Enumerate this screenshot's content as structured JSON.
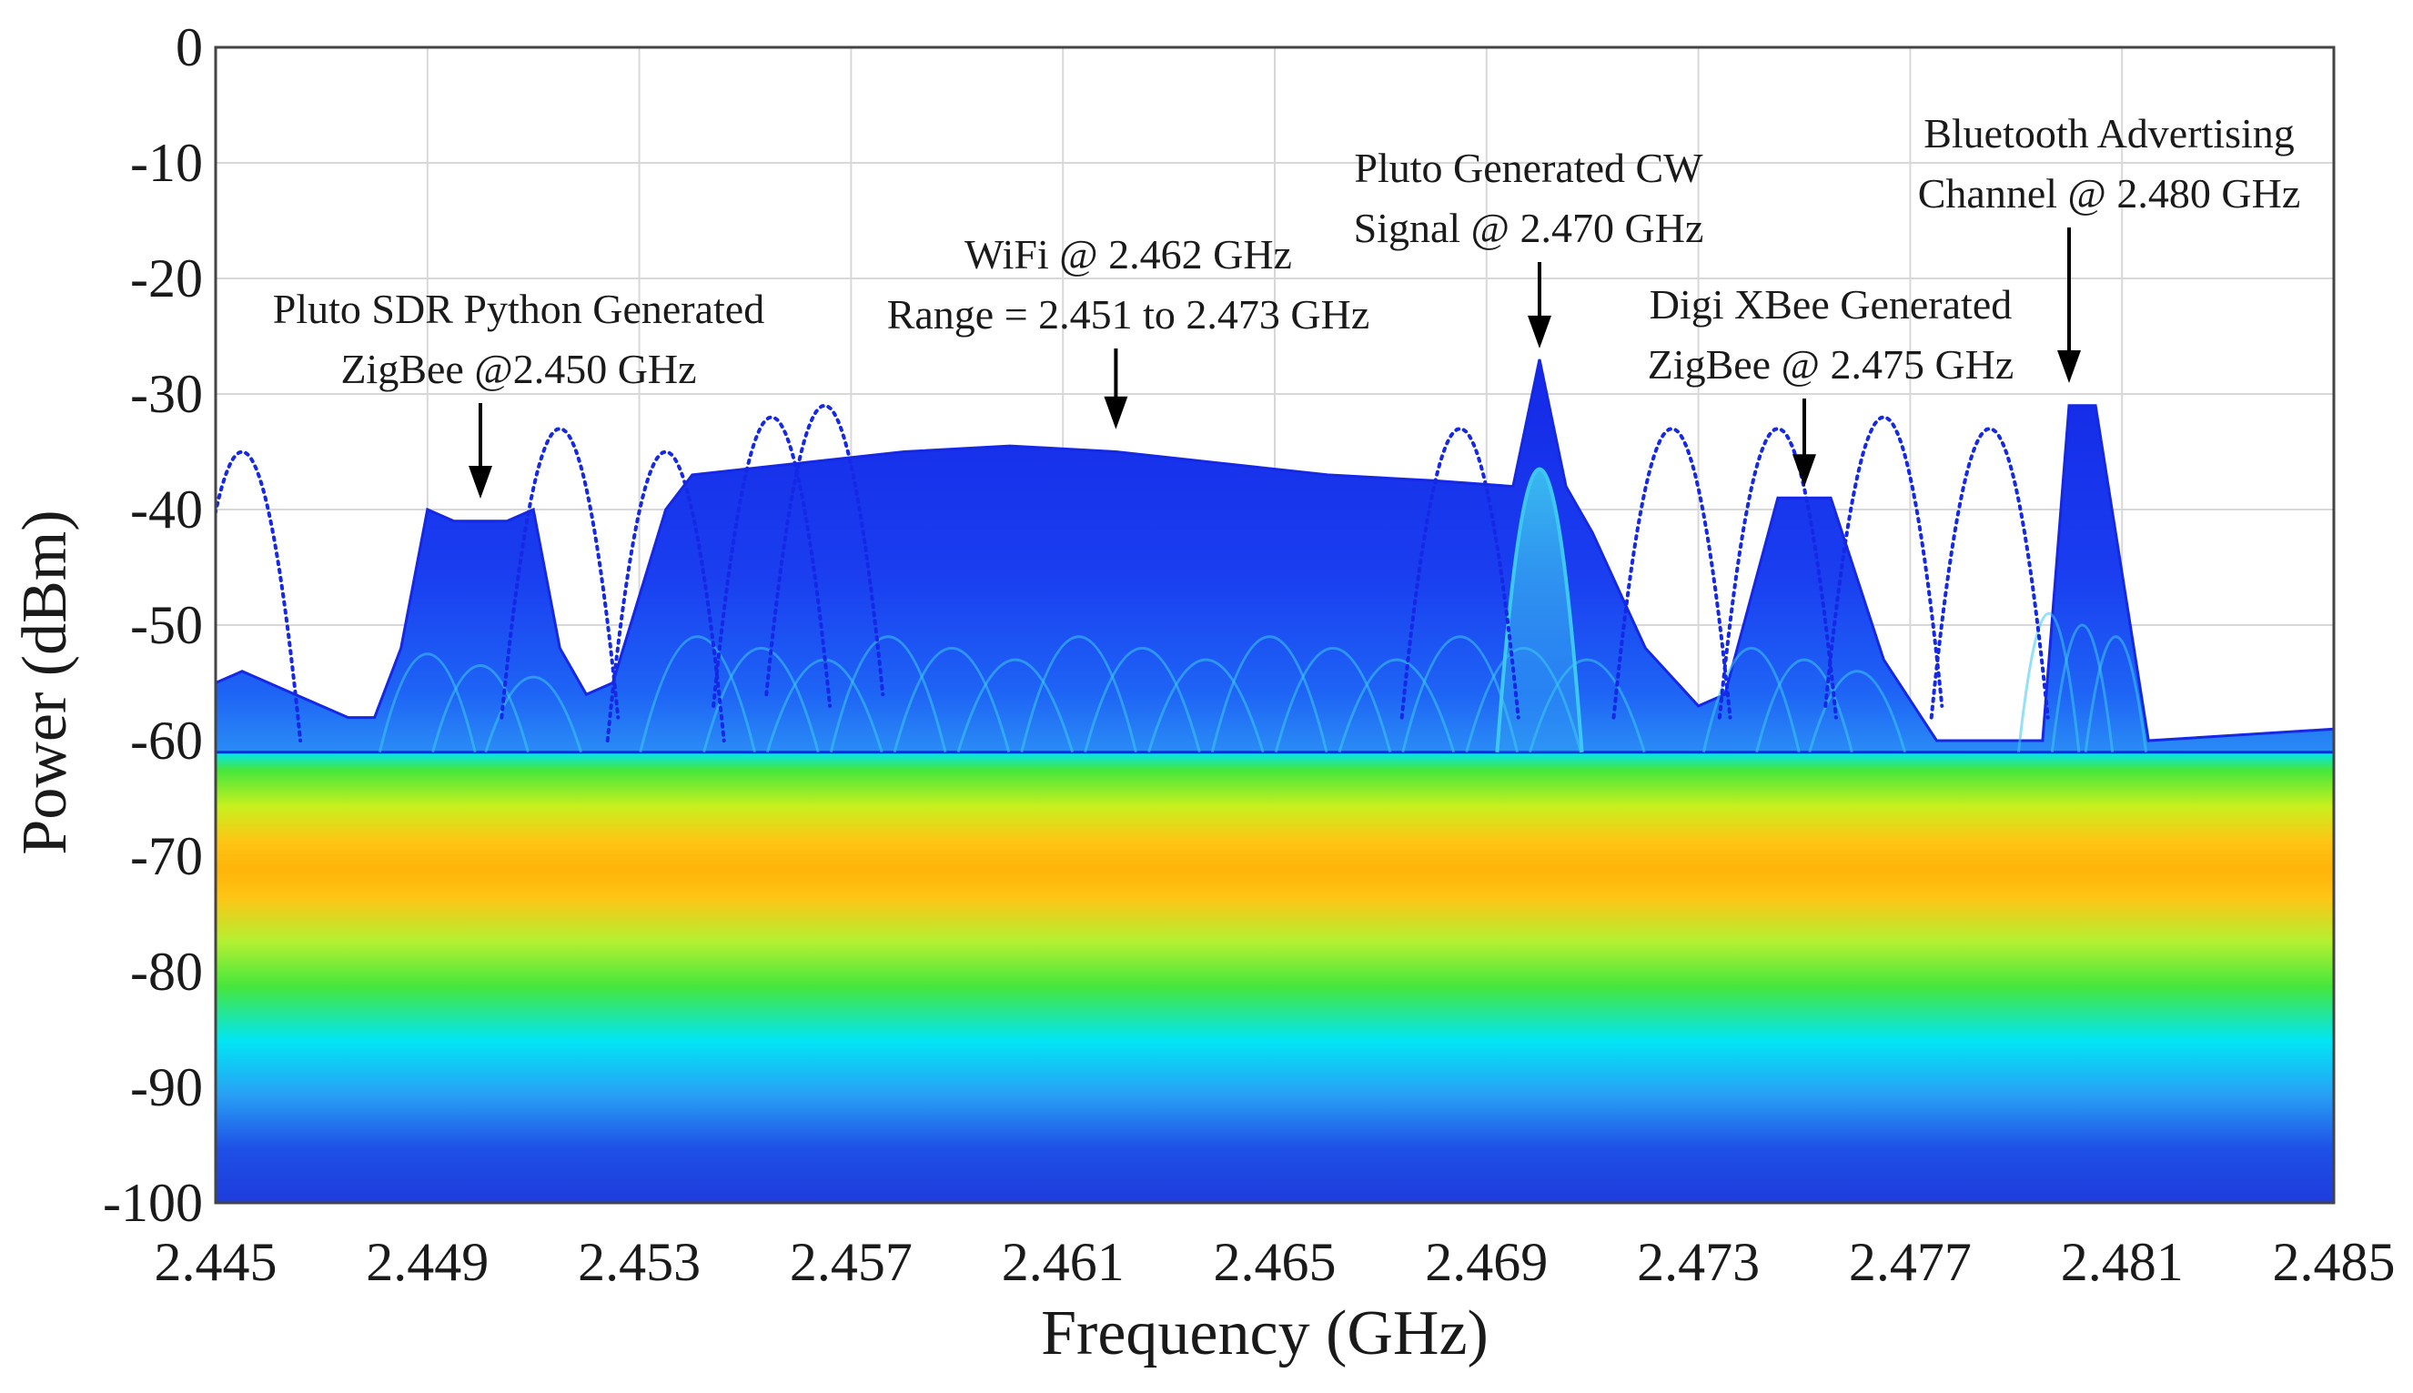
{
  "chart_data": {
    "type": "spectrum",
    "title": "",
    "xlabel": "Frequency (GHz)",
    "ylabel": "Power (dBm)",
    "xlim": [
      2.445,
      2.485
    ],
    "ylim": [
      -100,
      0
    ],
    "xticks": [
      "2.445",
      "2.449",
      "2.453",
      "2.457",
      "2.461",
      "2.465",
      "2.469",
      "2.473",
      "2.477",
      "2.481",
      "2.485"
    ],
    "xtick_values": [
      2.445,
      2.449,
      2.453,
      2.457,
      2.461,
      2.465,
      2.469,
      2.473,
      2.477,
      2.481,
      2.485
    ],
    "yticks": [
      "0",
      "-10",
      "-20",
      "-30",
      "-40",
      "-50",
      "-60",
      "-70",
      "-80",
      "-90",
      "-100"
    ],
    "ytick_values": [
      0,
      -10,
      -20,
      -30,
      -40,
      -50,
      -60,
      -70,
      -80,
      -90,
      -100
    ],
    "grid": true,
    "noise_floor": {
      "center_dbm": -70,
      "top_dbm": -61,
      "bottom_dbm": -100
    },
    "signal_envelope": [
      [
        2.445,
        -55
      ],
      [
        2.4455,
        -54
      ],
      [
        2.4465,
        -56
      ],
      [
        2.4475,
        -58
      ],
      [
        2.448,
        -58
      ],
      [
        2.4485,
        -52
      ],
      [
        2.449,
        -40
      ],
      [
        2.4495,
        -41
      ],
      [
        2.4505,
        -41
      ],
      [
        2.451,
        -40
      ],
      [
        2.4515,
        -52
      ],
      [
        2.452,
        -56
      ],
      [
        2.4525,
        -55
      ],
      [
        2.4535,
        -40
      ],
      [
        2.454,
        -37
      ],
      [
        2.456,
        -36
      ],
      [
        2.458,
        -35
      ],
      [
        2.46,
        -34.5
      ],
      [
        2.462,
        -35
      ],
      [
        2.464,
        -36
      ],
      [
        2.466,
        -37
      ],
      [
        2.468,
        -37.5
      ],
      [
        2.4695,
        -38
      ],
      [
        2.47,
        -27
      ],
      [
        2.4705,
        -38
      ],
      [
        2.471,
        -42
      ],
      [
        2.472,
        -52
      ],
      [
        2.473,
        -57
      ],
      [
        2.4735,
        -56
      ],
      [
        2.4745,
        -39
      ],
      [
        2.4755,
        -39
      ],
      [
        2.4765,
        -53
      ],
      [
        2.4775,
        -60
      ],
      [
        2.478,
        -60
      ],
      [
        2.4795,
        -60
      ],
      [
        2.48,
        -31
      ],
      [
        2.4805,
        -31
      ],
      [
        2.4815,
        -60
      ],
      [
        2.485,
        -59
      ]
    ],
    "hopping_traces": [
      {
        "peak_freq": 2.4455,
        "peak_dbm": -35
      },
      {
        "peak_freq": 2.4515,
        "peak_dbm": -33
      },
      {
        "peak_freq": 2.4535,
        "peak_dbm": -35
      },
      {
        "peak_freq": 2.4555,
        "peak_dbm": -32
      },
      {
        "peak_freq": 2.4565,
        "peak_dbm": -31
      },
      {
        "peak_freq": 2.4685,
        "peak_dbm": -33
      },
      {
        "peak_freq": 2.4725,
        "peak_dbm": -33
      },
      {
        "peak_freq": 2.4745,
        "peak_dbm": -33
      },
      {
        "peak_freq": 2.4765,
        "peak_dbm": -32
      },
      {
        "peak_freq": 2.4785,
        "peak_dbm": -33
      }
    ],
    "annotations": [
      {
        "lines": [
          "Pluto SDR Python Generated",
          "ZigBee @2.450 GHz"
        ],
        "target_freq": 2.45,
        "target_dbm": -40
      },
      {
        "lines": [
          "WiFi @ 2.462 GHz",
          "Range = 2.451 to 2.473 GHz"
        ],
        "target_freq": 2.462,
        "target_dbm": -34
      },
      {
        "lines": [
          "Pluto Generated CW",
          "Signal @ 2.470 GHz"
        ],
        "target_freq": 2.47,
        "target_dbm": -27
      },
      {
        "lines": [
          "Digi XBee Generated",
          "ZigBee @ 2.475 GHz"
        ],
        "target_freq": 2.475,
        "target_dbm": -39
      },
      {
        "lines": [
          "Bluetooth Advertising",
          "Channel @ 2.480 GHz"
        ],
        "target_freq": 2.48,
        "target_dbm": -30
      }
    ]
  },
  "colors": {
    "grid": "#d8d8d8",
    "axis": "#444444",
    "signal_deep": "#1428e6",
    "signal_mid": "#1e64f5",
    "signal_light": "#3cc8f0",
    "noise_yellow": "#ffc414",
    "noise_green": "#46e63c",
    "noise_cyan": "#00e6f5",
    "noise_blue": "#1e50e6",
    "arrow": "#000000"
  }
}
